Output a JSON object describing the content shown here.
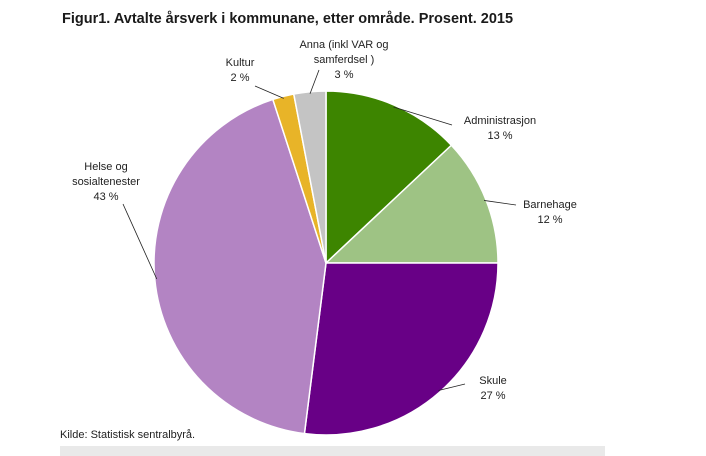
{
  "chart_data": {
    "type": "pie",
    "title": "Figur1. Avtalte årsverk i kommunane, etter område. Prosent. 2015",
    "slices": [
      {
        "name_lines": [
          "Administrasjon"
        ],
        "value": 13,
        "value_label": "13 %",
        "color": "#3d8500"
      },
      {
        "name_lines": [
          "Barnehage"
        ],
        "value": 12,
        "value_label": "12 %",
        "color": "#9ec384"
      },
      {
        "name_lines": [
          "Skule"
        ],
        "value": 27,
        "value_label": "27 %",
        "color": "#680086"
      },
      {
        "name_lines": [
          "Helse og",
          "sosialtenester"
        ],
        "value": 43,
        "value_label": "43 %",
        "color": "#b384c3"
      },
      {
        "name_lines": [
          "Kultur"
        ],
        "value": 2,
        "value_label": "2 %",
        "color": "#e8b428"
      },
      {
        "name_lines": [
          "Anna (inkl VAR og",
          "samferdsel )"
        ],
        "value": 3,
        "value_label": "3 %",
        "color": "#c4c4c4"
      }
    ],
    "start_angle_deg": 0,
    "direction": "clockwise",
    "source": "Kilde: Statistisk sentralbyrå."
  }
}
